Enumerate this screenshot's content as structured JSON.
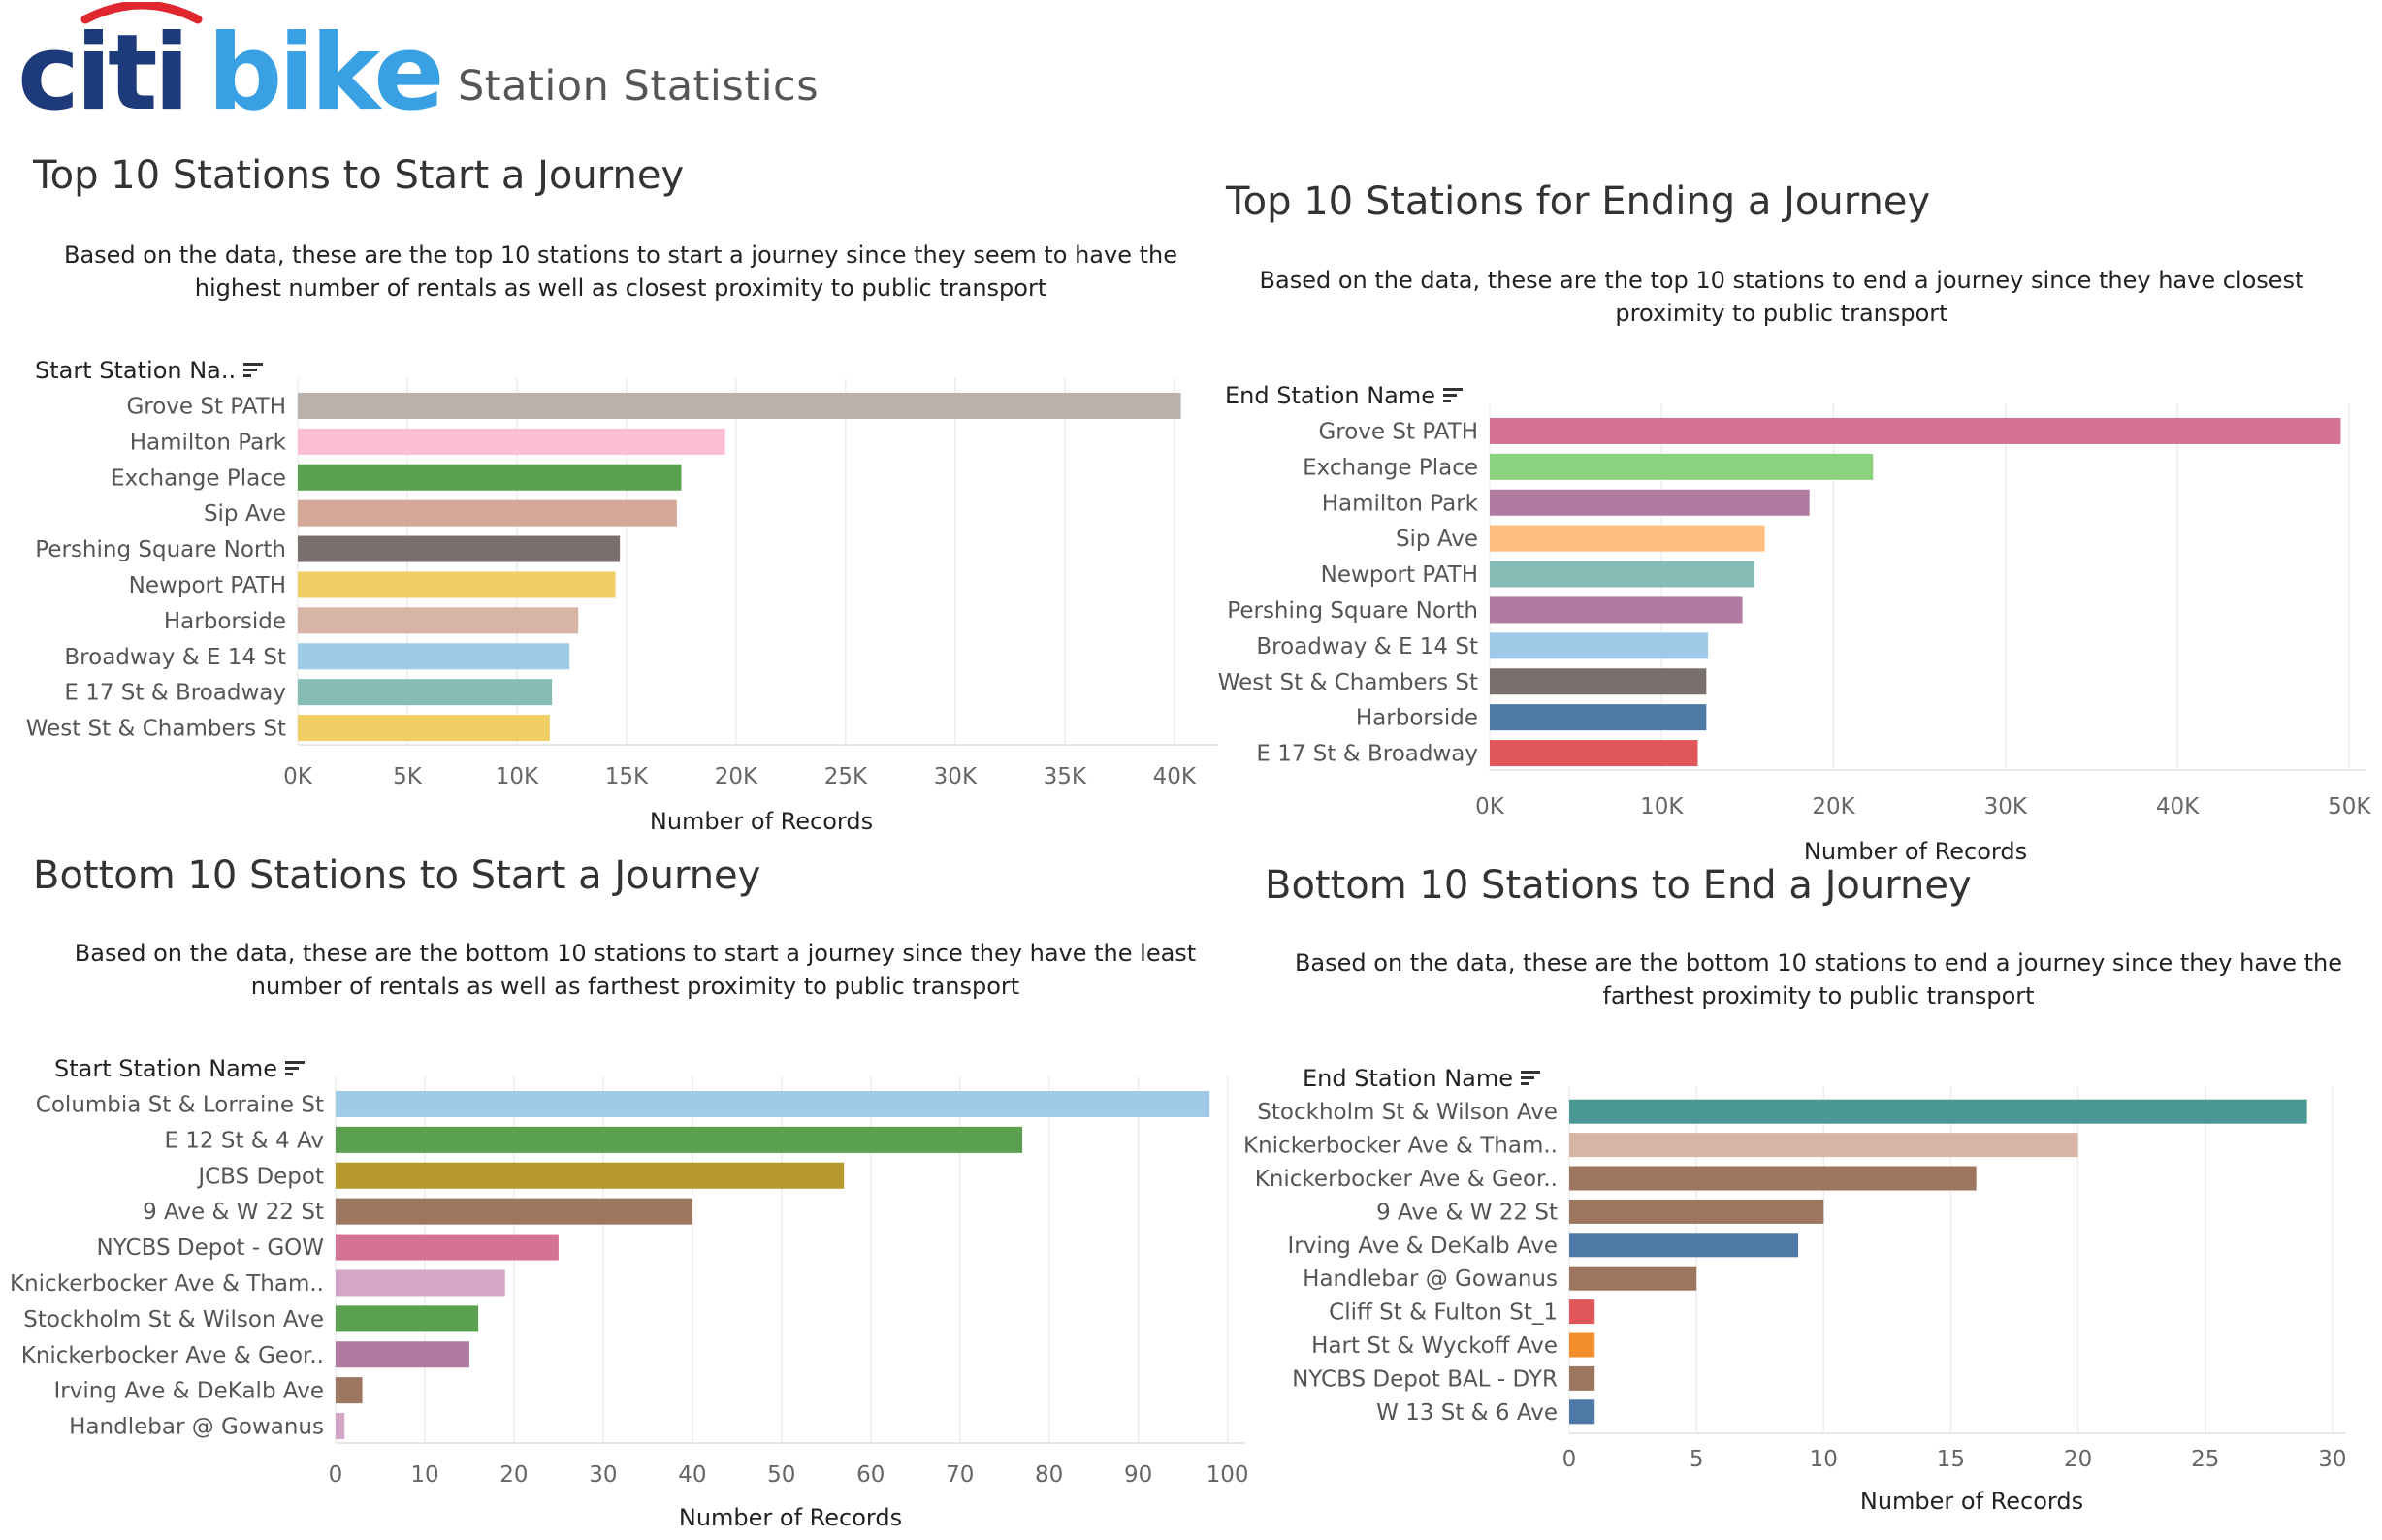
{
  "header": {
    "logo_left": "citi",
    "logo_right": "bike",
    "sheet_title": "Station Statistics",
    "colors": {
      "citi_navy": "#1d3a7a",
      "citi_red": "#e0262f",
      "bike_blue": "#3aa0e4"
    }
  },
  "chart_data": [
    {
      "type": "bar",
      "orientation": "horizontal",
      "title": "Top 10 Stations to Start a Journey",
      "description": "Based on the data, these are the top 10 stations to start a journey since they seem to have the highest number of rentals as well as closest proximity to public transport",
      "ylabel": "Start Station Na..",
      "xlabel": "Number of Records",
      "categories": [
        "Grove St PATH",
        "Hamilton Park",
        "Exchange Place",
        "Sip Ave",
        "Pershing Square North",
        "Newport PATH",
        "Harborside",
        "Broadway & E 14 St",
        "E 17 St & Broadway",
        "West St & Chambers St"
      ],
      "values": [
        40300,
        19500,
        17500,
        17300,
        14700,
        14500,
        12800,
        12400,
        11600,
        11500
      ],
      "colors": [
        "#bab0ac",
        "#fcbfd2",
        "#59a14f",
        "#d4a999",
        "#79706e",
        "#f1ce63",
        "#d7b5a6",
        "#a0cbe8",
        "#86bcb6",
        "#f1ce63"
      ],
      "xlim": [
        0,
        42000
      ],
      "xticks": [
        0,
        5000,
        10000,
        15000,
        20000,
        25000,
        30000,
        35000,
        40000
      ],
      "xtick_labels": [
        "0K",
        "5K",
        "10K",
        "15K",
        "20K",
        "25K",
        "30K",
        "35K",
        "40K"
      ],
      "grid": true
    },
    {
      "type": "bar",
      "orientation": "horizontal",
      "title": "Top 10 Stations for Ending a Journey",
      "description": "Based on the data, these are the top 10 stations to end a journey since they have closest proximity to public transport",
      "ylabel": "End Station Name",
      "xlabel": "Number of Records",
      "categories": [
        "Grove St PATH",
        "Exchange Place",
        "Hamilton Park",
        "Sip Ave",
        "Newport PATH",
        "Pershing Square North",
        "Broadway & E 14 St",
        "West St & Chambers St",
        "Harborside",
        "E 17 St & Broadway"
      ],
      "values": [
        49500,
        22300,
        18600,
        16000,
        15400,
        14700,
        12700,
        12600,
        12600,
        12100
      ],
      "colors": [
        "#d37295",
        "#8cd17d",
        "#b07aa1",
        "#ffbe7d",
        "#86bcb6",
        "#b07aa1",
        "#a0cbe8",
        "#79706e",
        "#4e79a7",
        "#e15759"
      ],
      "xlim": [
        0,
        51000
      ],
      "xticks": [
        0,
        10000,
        20000,
        30000,
        40000,
        50000
      ],
      "xtick_labels": [
        "0K",
        "10K",
        "20K",
        "30K",
        "40K",
        "50K"
      ],
      "grid": true
    },
    {
      "type": "bar",
      "orientation": "horizontal",
      "title": "Bottom 10 Stations to Start a Journey",
      "description": "Based on the data, these are the bottom 10 stations to start a journey since they have the least number of rentals as well as farthest proximity to public transport",
      "ylabel": "Start Station Name",
      "xlabel": "Number of Records",
      "categories": [
        "Columbia St & Lorraine St",
        "E 12 St & 4 Av",
        "JCBS Depot",
        "9 Ave & W 22 St",
        "NYCBS Depot - GOW",
        "Knickerbocker Ave & Tham..",
        "Stockholm St & Wilson Ave",
        "Knickerbocker Ave & Geor..",
        "Irving Ave & DeKalb Ave",
        "Handlebar @ Gowanus"
      ],
      "values": [
        98,
        77,
        57,
        40,
        25,
        19,
        16,
        15,
        3,
        1
      ],
      "colors": [
        "#a0cbe8",
        "#59a14f",
        "#b6992d",
        "#9d7660",
        "#d37295",
        "#d4a6c8",
        "#59a14f",
        "#b07aa1",
        "#9d7660",
        "#d4a6c8"
      ],
      "xlim": [
        0,
        102
      ],
      "xticks": [
        0,
        10,
        20,
        30,
        40,
        50,
        60,
        70,
        80,
        90,
        100
      ],
      "xtick_labels": [
        "0",
        "10",
        "20",
        "30",
        "40",
        "50",
        "60",
        "70",
        "80",
        "90",
        "100"
      ],
      "grid": true
    },
    {
      "type": "bar",
      "orientation": "horizontal",
      "title": "Bottom 10 Stations to End a Journey",
      "description": "Based on the data, these are the bottom 10 stations to end a journey since they have the farthest proximity to public transport",
      "ylabel": "End Station Name",
      "xlabel": "Number of Records",
      "categories": [
        "Stockholm St & Wilson Ave",
        "Knickerbocker Ave & Tham..",
        "Knickerbocker Ave & Geor..",
        "9 Ave & W 22 St",
        "Irving Ave & DeKalb Ave",
        "Handlebar @ Gowanus",
        "Cliff St & Fulton St_1",
        "Hart St & Wyckoff Ave",
        "NYCBS Depot BAL - DYR",
        "W 13 St & 6 Ave"
      ],
      "values": [
        29,
        20,
        16,
        10,
        9,
        5,
        1,
        1,
        1,
        1
      ],
      "colors": [
        "#499894",
        "#d7b5a6",
        "#9d7660",
        "#9d7660",
        "#4e79a7",
        "#9d7660",
        "#e15759",
        "#f28e2b",
        "#9d7660",
        "#4e79a7"
      ],
      "xlim": [
        0,
        30.5
      ],
      "xticks": [
        0,
        5,
        10,
        15,
        20,
        25,
        30
      ],
      "xtick_labels": [
        "0",
        "5",
        "10",
        "15",
        "20",
        "25",
        "30"
      ],
      "grid": true
    }
  ]
}
